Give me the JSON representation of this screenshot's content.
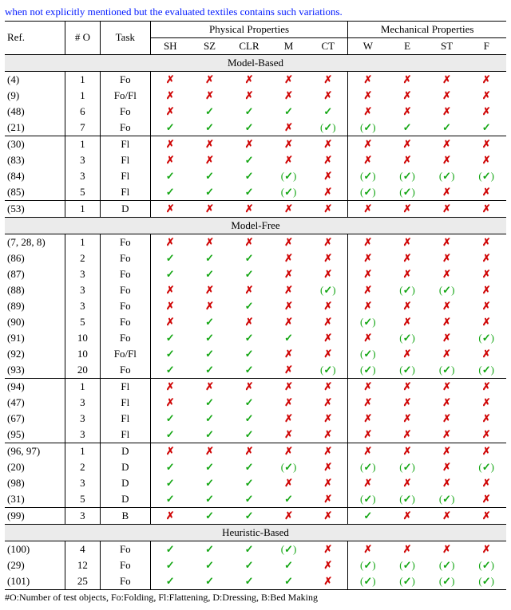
{
  "caption_snip": "when not explicitly mentioned but the evaluated textiles contains such variations.",
  "footer": "#O:Number of test objects, Fo:Folding, Fl:Flattening, D:Dressing, B:Bed Making",
  "marks": {
    "y": "✓",
    "n": "✗",
    "py_open": "(",
    "py_close": ")"
  },
  "header": {
    "ref": "Ref.",
    "numO": "# O",
    "task": "Task",
    "phys": "Physical Properties",
    "mech": "Mechanical Properties",
    "sub": [
      "SH",
      "SZ",
      "CLR",
      "M",
      "CT",
      "W",
      "E",
      "ST",
      "F"
    ]
  },
  "sections": [
    {
      "label": "Model-Based",
      "groups": [
        [
          {
            "ref": "(4)",
            "n": "1",
            "task": "Fo",
            "v": [
              "n",
              "n",
              "n",
              "n",
              "n",
              "n",
              "n",
              "n",
              "n"
            ]
          },
          {
            "ref": "(9)",
            "n": "1",
            "task": "Fo/Fl",
            "v": [
              "n",
              "n",
              "n",
              "n",
              "n",
              "n",
              "n",
              "n",
              "n"
            ]
          },
          {
            "ref": "(48)",
            "n": "6",
            "task": "Fo",
            "v": [
              "n",
              "y",
              "y",
              "y",
              "y",
              "n",
              "n",
              "n",
              "n"
            ]
          },
          {
            "ref": "(21)",
            "n": "7",
            "task": "Fo",
            "v": [
              "y",
              "y",
              "y",
              "n",
              "py",
              "py",
              "y",
              "y",
              "y"
            ]
          }
        ],
        [
          {
            "ref": "(30)",
            "n": "1",
            "task": "Fl",
            "v": [
              "n",
              "n",
              "n",
              "n",
              "n",
              "n",
              "n",
              "n",
              "n"
            ]
          },
          {
            "ref": "(83)",
            "n": "3",
            "task": "Fl",
            "v": [
              "n",
              "n",
              "y",
              "n",
              "n",
              "n",
              "n",
              "n",
              "n"
            ]
          },
          {
            "ref": "(84)",
            "n": "3",
            "task": "Fl",
            "v": [
              "y",
              "y",
              "y",
              "py",
              "n",
              "py",
              "py",
              "py",
              "py"
            ]
          },
          {
            "ref": "(85)",
            "n": "5",
            "task": "Fl",
            "v": [
              "y",
              "y",
              "y",
              "py",
              "n",
              "py",
              "py",
              "n",
              "n"
            ]
          }
        ],
        [
          {
            "ref": "(53)",
            "n": "1",
            "task": "D",
            "v": [
              "n",
              "n",
              "n",
              "n",
              "n",
              "n",
              "n",
              "n",
              "n"
            ]
          }
        ]
      ]
    },
    {
      "label": "Model-Free",
      "groups": [
        [
          {
            "ref": "(7, 28, 8)",
            "n": "1",
            "task": "Fo",
            "v": [
              "n",
              "n",
              "n",
              "n",
              "n",
              "n",
              "n",
              "n",
              "n"
            ]
          },
          {
            "ref": "(86)",
            "n": "2",
            "task": "Fo",
            "v": [
              "y",
              "y",
              "y",
              "n",
              "n",
              "n",
              "n",
              "n",
              "n"
            ]
          },
          {
            "ref": "(87)",
            "n": "3",
            "task": "Fo",
            "v": [
              "y",
              "y",
              "y",
              "n",
              "n",
              "n",
              "n",
              "n",
              "n"
            ]
          },
          {
            "ref": "(88)",
            "n": "3",
            "task": "Fo",
            "v": [
              "n",
              "n",
              "n",
              "n",
              "py",
              "n",
              "py",
              "py",
              "n"
            ]
          },
          {
            "ref": "(89)",
            "n": "3",
            "task": "Fo",
            "v": [
              "n",
              "n",
              "y",
              "n",
              "n",
              "n",
              "n",
              "n",
              "n"
            ]
          },
          {
            "ref": "(90)",
            "n": "5",
            "task": "Fo",
            "v": [
              "n",
              "y",
              "n",
              "n",
              "n",
              "py",
              "n",
              "n",
              "n"
            ]
          },
          {
            "ref": "(91)",
            "n": "10",
            "task": "Fo",
            "v": [
              "y",
              "y",
              "y",
              "y",
              "n",
              "n",
              "py",
              "n",
              "py"
            ]
          },
          {
            "ref": "(92)",
            "n": "10",
            "task": "Fo/Fl",
            "v": [
              "y",
              "y",
              "y",
              "n",
              "n",
              "py",
              "n",
              "n",
              "n"
            ]
          },
          {
            "ref": "(93)",
            "n": "20",
            "task": "Fo",
            "v": [
              "y",
              "y",
              "y",
              "n",
              "py",
              "py",
              "py",
              "py",
              "py"
            ]
          }
        ],
        [
          {
            "ref": "(94)",
            "n": "1",
            "task": "Fl",
            "v": [
              "n",
              "n",
              "n",
              "n",
              "n",
              "n",
              "n",
              "n",
              "n"
            ]
          },
          {
            "ref": "(47)",
            "n": "3",
            "task": "Fl",
            "v": [
              "n",
              "y",
              "y",
              "n",
              "n",
              "n",
              "n",
              "n",
              "n"
            ]
          },
          {
            "ref": "(67)",
            "n": "3",
            "task": "Fl",
            "v": [
              "y",
              "y",
              "y",
              "n",
              "n",
              "n",
              "n",
              "n",
              "n"
            ]
          },
          {
            "ref": "(95)",
            "n": "3",
            "task": "Fl",
            "v": [
              "y",
              "y",
              "y",
              "n",
              "n",
              "n",
              "n",
              "n",
              "n"
            ]
          }
        ],
        [
          {
            "ref": "(96, 97)",
            "n": "1",
            "task": "D",
            "v": [
              "n",
              "n",
              "n",
              "n",
              "n",
              "n",
              "n",
              "n",
              "n"
            ]
          },
          {
            "ref": "(20)",
            "n": "2",
            "task": "D",
            "v": [
              "y",
              "y",
              "y",
              "py",
              "n",
              "py",
              "py",
              "n",
              "py"
            ]
          },
          {
            "ref": "(98)",
            "n": "3",
            "task": "D",
            "v": [
              "y",
              "y",
              "y",
              "n",
              "n",
              "n",
              "n",
              "n",
              "n"
            ]
          },
          {
            "ref": "(31)",
            "n": "5",
            "task": "D",
            "v": [
              "y",
              "y",
              "y",
              "y",
              "n",
              "py",
              "py",
              "py",
              "n"
            ]
          }
        ],
        [
          {
            "ref": "(99)",
            "n": "3",
            "task": "B",
            "v": [
              "n",
              "y",
              "y",
              "n",
              "n",
              "y",
              "n",
              "n",
              "n"
            ]
          }
        ]
      ]
    },
    {
      "label": "Heuristic-Based",
      "groups": [
        [
          {
            "ref": "(100)",
            "n": "4",
            "task": "Fo",
            "v": [
              "y",
              "y",
              "y",
              "py",
              "n",
              "n",
              "n",
              "n",
              "n"
            ]
          },
          {
            "ref": "(29)",
            "n": "12",
            "task": "Fo",
            "v": [
              "y",
              "y",
              "y",
              "y",
              "n",
              "py",
              "py",
              "py",
              "py"
            ]
          },
          {
            "ref": "(101)",
            "n": "25",
            "task": "Fo",
            "v": [
              "y",
              "y",
              "y",
              "y",
              "n",
              "py",
              "py",
              "py",
              "py"
            ]
          }
        ]
      ]
    }
  ],
  "colors": {
    "yes": "#14a614",
    "no": "#cf0404",
    "section_bg": "#ebebeb",
    "rule": "#000000",
    "caption": "#0018ff"
  },
  "typography": {
    "body_font": "Times New Roman",
    "body_size_pt": 10,
    "footer_size_pt": 9
  }
}
